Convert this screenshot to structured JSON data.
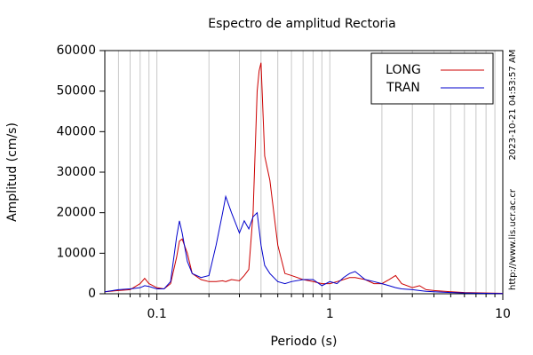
{
  "chart_data": {
    "type": "line",
    "title": "Espectro de amplitud Rectoria",
    "x_label": "Periodo (s)",
    "y_label": "Amplitud (cm/s)",
    "timestamp": "2023-10-21 04:53:57 AM",
    "source": "http://www.lis.ucr.ac.cr",
    "x": [
      0.05,
      0.06,
      0.07,
      0.08,
      0.085,
      0.09,
      0.1,
      0.11,
      0.12,
      0.13,
      0.135,
      0.14,
      0.15,
      0.16,
      0.18,
      0.2,
      0.22,
      0.24,
      0.25,
      0.27,
      0.3,
      0.32,
      0.34,
      0.36,
      0.38,
      0.39,
      0.4,
      0.42,
      0.45,
      0.5,
      0.55,
      0.6,
      0.7,
      0.8,
      0.9,
      1.0,
      1.1,
      1.2,
      1.3,
      1.4,
      1.6,
      1.8,
      2.0,
      2.2,
      2.4,
      2.6,
      3.0,
      3.3,
      3.6,
      4,
      5,
      6,
      8,
      10
    ],
    "series": [
      {
        "name": "LONG",
        "color": "#cc0000",
        "values": [
          500,
          800,
          1000,
          2500,
          3800,
          2500,
          1500,
          1200,
          2500,
          9000,
          13000,
          13500,
          10000,
          5000,
          3500,
          3000,
          3000,
          3200,
          3000,
          3500,
          3200,
          4500,
          6000,
          20000,
          50000,
          55000,
          57000,
          34000,
          28000,
          12000,
          5000,
          4500,
          3500,
          3000,
          2500,
          2500,
          3000,
          3500,
          4000,
          4000,
          3500,
          2500,
          2500,
          3500,
          4500,
          2500,
          1500,
          2000,
          1000,
          800,
          500,
          300,
          200,
          100
        ]
      },
      {
        "name": "TRAN",
        "color": "#0000cc",
        "values": [
          500,
          1000,
          1200,
          1500,
          2000,
          1800,
          1200,
          1200,
          3000,
          14000,
          18000,
          15000,
          8000,
          5000,
          4000,
          4500,
          12000,
          20000,
          24000,
          20000,
          15000,
          18000,
          16000,
          19000,
          20000,
          16000,
          12000,
          7000,
          5000,
          3000,
          2500,
          3000,
          3500,
          3500,
          2000,
          3000,
          2500,
          4000,
          5000,
          5500,
          3500,
          3000,
          2500,
          2000,
          1500,
          1200,
          1000,
          800,
          600,
          500,
          300,
          200,
          100,
          50
        ]
      }
    ],
    "xlim": [
      0.05,
      10
    ],
    "log_x": true,
    "xticks": [
      0.1,
      1,
      10
    ],
    "xminorticks": [
      0.06,
      0.07,
      0.08,
      0.09,
      0.2,
      0.3,
      0.4,
      0.5,
      0.6,
      0.7,
      0.8,
      0.9,
      2,
      3,
      4,
      5,
      6,
      7,
      8,
      9
    ],
    "ylim": [
      0,
      60000
    ],
    "yticks": [
      0,
      10000,
      20000,
      30000,
      40000,
      50000,
      60000
    ],
    "grid": "x",
    "legend": "upper right"
  }
}
